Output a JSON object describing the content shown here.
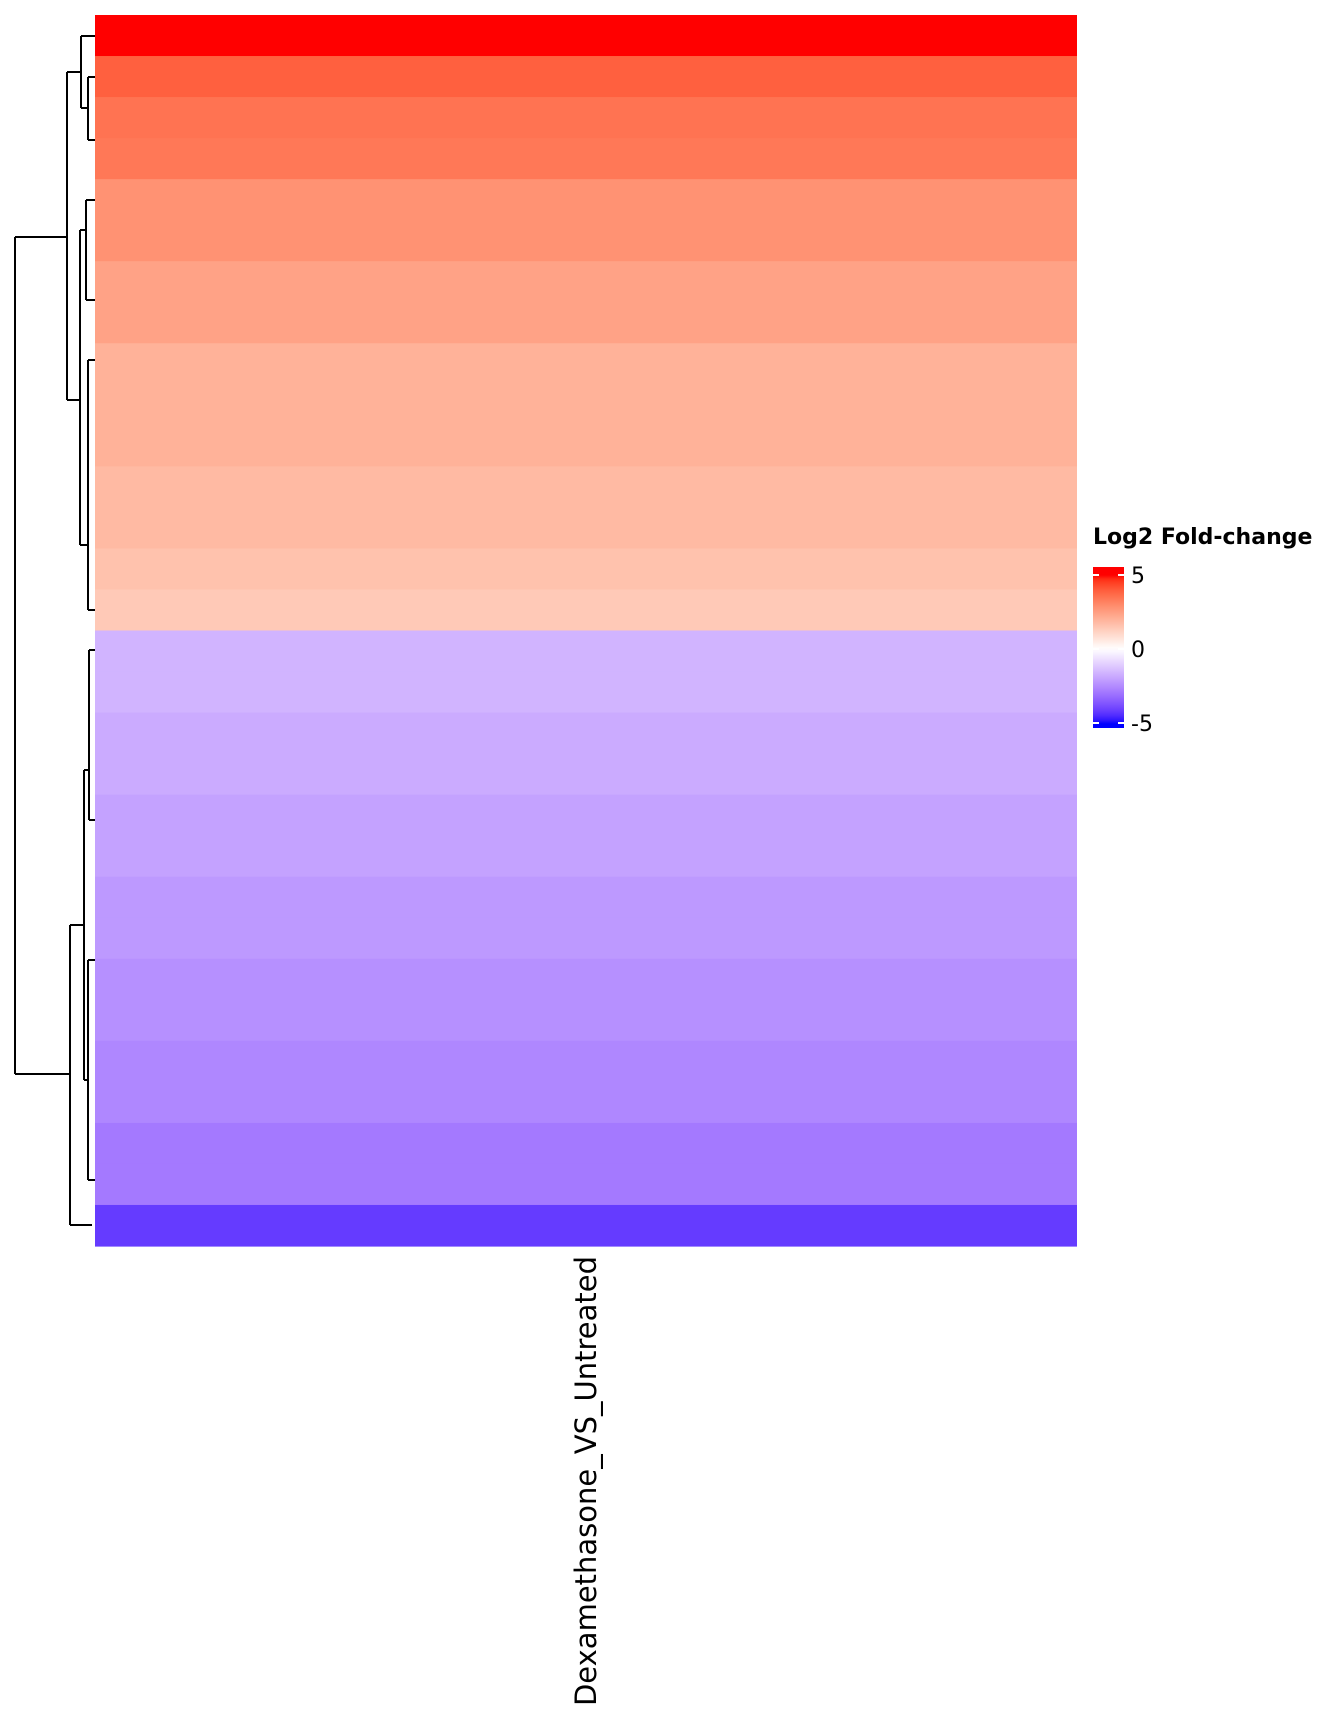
{
  "chart_data": {
    "type": "heatmap",
    "columns": [
      "Dexamethasone_VS_Untreated"
    ],
    "values": [
      5.0,
      3.9,
      3.5,
      3.4,
      2.8,
      2.8,
      2.4,
      2.4,
      2.0,
      2.0,
      2.0,
      1.8,
      1.8,
      1.6,
      1.4,
      -1.6,
      -1.6,
      -1.8,
      -1.8,
      -2.0,
      -2.0,
      -2.2,
      -2.2,
      -2.4,
      -2.4,
      -2.6,
      -2.6,
      -2.9,
      -2.9,
      -4.2
    ],
    "legend_title": "Log2 Fold-change",
    "colorscale": {
      "min": -5,
      "mid": 0,
      "max": 5,
      "colors": [
        "#0000ff",
        "#ffffff",
        "#ff0000"
      ]
    },
    "legend_ticks": [
      5,
      0,
      -5
    ]
  }
}
